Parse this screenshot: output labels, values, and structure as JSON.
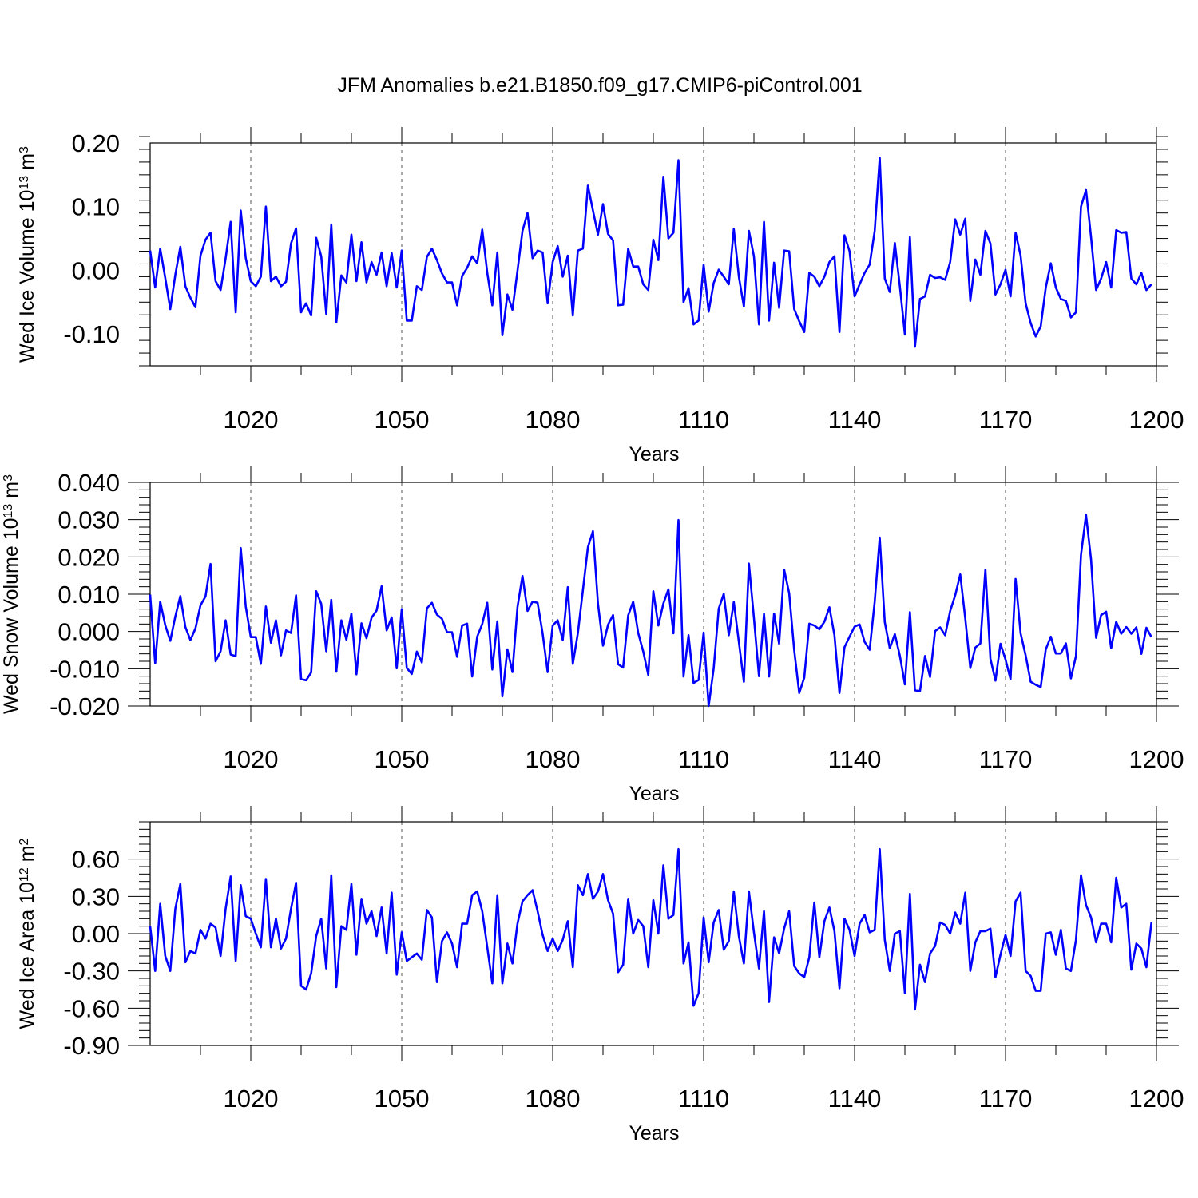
{
  "title": "JFM Anomalies b.e21.B1850.f09_g17.CMIP6-piControl.001",
  "colors": {
    "line": "#0000ff",
    "axis": "#000000",
    "grid": "#555555",
    "background": "#ffffff"
  },
  "chart_data": [
    {
      "type": "line",
      "ylabel": "Wed Ice Volume 10",
      "ylabel_exp": "13",
      "ylabel_unit": "m",
      "ylabel_unit_exp": "3",
      "xlabel": "Years",
      "xlim": [
        1000,
        1200
      ],
      "ylim": [
        -0.15,
        0.2
      ],
      "xticks": [
        1020,
        1050,
        1080,
        1110,
        1140,
        1170,
        1200
      ],
      "xtick_labels": [
        "1020",
        "1050",
        "1080",
        "1110",
        "1140",
        "1170",
        "1200"
      ],
      "yticks": [
        -0.1,
        0.0,
        0.1,
        0.2
      ],
      "ytick_labels": [
        "-0.10",
        "0.00",
        "0.10",
        "0.20"
      ],
      "x_start": 1000,
      "values": [
        0.031,
        -0.027,
        0.034,
        -0.012,
        -0.061,
        -0.007,
        0.037,
        -0.025,
        -0.043,
        -0.058,
        0.023,
        0.048,
        0.059,
        -0.017,
        -0.031,
        0.019,
        0.076,
        -0.066,
        0.094,
        0.019,
        -0.017,
        -0.025,
        -0.01,
        0.1,
        -0.017,
        -0.01,
        -0.025,
        -0.018,
        0.042,
        0.066,
        -0.066,
        -0.052,
        -0.071,
        0.051,
        0.022,
        -0.069,
        0.072,
        -0.082,
        -0.008,
        -0.019,
        0.056,
        -0.017,
        0.044,
        -0.019,
        0.013,
        -0.007,
        0.028,
        -0.025,
        0.027,
        -0.027,
        0.031,
        -0.079,
        -0.079,
        -0.025,
        -0.031,
        0.021,
        0.034,
        0.016,
        -0.005,
        -0.019,
        -0.019,
        -0.055,
        -0.009,
        0.004,
        0.022,
        0.011,
        0.064,
        -0.004,
        -0.055,
        0.028,
        -0.102,
        -0.038,
        -0.062,
        -0.001,
        0.062,
        0.09,
        0.019,
        0.031,
        0.028,
        -0.052,
        0.013,
        0.038,
        -0.01,
        0.023,
        -0.071,
        0.031,
        0.034,
        0.133,
        0.094,
        0.056,
        0.104,
        0.057,
        0.047,
        -0.055,
        -0.054,
        0.034,
        0.006,
        0.006,
        -0.022,
        -0.031,
        0.048,
        0.016,
        0.147,
        0.05,
        0.059,
        0.173,
        -0.05,
        -0.028,
        -0.085,
        -0.079,
        0.009,
        -0.065,
        -0.02,
        0.001,
        -0.01,
        -0.022,
        0.065,
        -0.01,
        -0.057,
        0.062,
        0.022,
        -0.085,
        0.076,
        -0.079,
        0.012,
        -0.059,
        0.031,
        0.03,
        -0.061,
        -0.08,
        -0.097,
        -0.004,
        -0.01,
        -0.025,
        -0.01,
        0.013,
        0.022,
        -0.097,
        0.055,
        0.03,
        -0.041,
        -0.022,
        -0.004,
        0.009,
        0.062,
        0.177,
        -0.013,
        -0.034,
        0.043,
        -0.025,
        -0.101,
        0.052,
        -0.12,
        -0.045,
        -0.041,
        -0.007,
        -0.012,
        -0.011,
        -0.015,
        0.013,
        0.08,
        0.056,
        0.081,
        -0.048,
        0.017,
        -0.007,
        0.062,
        0.042,
        -0.038,
        -0.022,
        0.001,
        -0.041,
        0.059,
        0.023,
        -0.052,
        -0.083,
        -0.104,
        -0.088,
        -0.027,
        0.011,
        -0.027,
        -0.045,
        -0.048,
        -0.074,
        -0.066,
        0.1,
        0.126,
        0.052,
        -0.031,
        -0.013,
        0.013,
        -0.027,
        0.063,
        0.059,
        0.06,
        -0.013,
        -0.022,
        -0.004,
        -0.031,
        -0.022
      ]
    },
    {
      "type": "line",
      "ylabel": "Wed Snow Volume 10",
      "ylabel_exp": "13",
      "ylabel_unit": "m",
      "ylabel_unit_exp": "3",
      "xlabel": "Years",
      "xlim": [
        1000,
        1200
      ],
      "ylim": [
        -0.02,
        0.04
      ],
      "xticks": [
        1020,
        1050,
        1080,
        1110,
        1140,
        1170,
        1200
      ],
      "xtick_labels": [
        "1020",
        "1050",
        "1080",
        "1110",
        "1140",
        "1170",
        "1200"
      ],
      "yticks": [
        -0.02,
        -0.01,
        0.0,
        0.01,
        0.02,
        0.03,
        0.04
      ],
      "ytick_labels": [
        "-0.020",
        "-0.010",
        "0.000",
        "0.010",
        "0.020",
        "0.030",
        "0.040"
      ],
      "x_start": 1000,
      "values": [
        0.0099,
        -0.0086,
        0.008,
        0.0017,
        -0.0025,
        0.004,
        0.0095,
        0.0012,
        -0.0023,
        0.0008,
        0.007,
        0.0094,
        0.0181,
        -0.008,
        -0.0053,
        0.003,
        -0.0062,
        -0.0066,
        0.0224,
        0.0067,
        -0.0015,
        -0.0015,
        -0.0087,
        0.0067,
        -0.003,
        0.003,
        -0.0064,
        0.0003,
        -0.0004,
        0.0097,
        -0.0128,
        -0.0131,
        -0.011,
        0.0108,
        0.0074,
        -0.0053,
        0.0085,
        -0.0108,
        0.003,
        -0.0022,
        0.0048,
        -0.0115,
        0.0022,
        -0.0018,
        0.0037,
        0.0056,
        0.0121,
        0.0003,
        0.0038,
        -0.0099,
        0.006,
        -0.0098,
        -0.0114,
        -0.0054,
        -0.0083,
        0.0062,
        0.0077,
        0.0045,
        0.0034,
        -0.0002,
        -0.0002,
        -0.0068,
        0.0016,
        0.0021,
        -0.0121,
        -0.0014,
        0.002,
        0.0077,
        -0.0102,
        0.0027,
        -0.0174,
        -0.0048,
        -0.0109,
        0.0065,
        0.0149,
        0.0055,
        0.008,
        0.0077,
        -0.0005,
        -0.0109,
        0.0016,
        0.003,
        -0.0023,
        0.0119,
        -0.0087,
        -0.0005,
        0.011,
        0.0226,
        0.0269,
        0.0075,
        -0.0038,
        0.0018,
        0.0044,
        -0.0088,
        -0.0097,
        0.0043,
        0.008,
        -0.0004,
        -0.0054,
        -0.0117,
        0.0108,
        0.0016,
        0.0075,
        0.0113,
        -0.0005,
        0.0299,
        -0.0121,
        -0.001,
        -0.0138,
        -0.013,
        -0.0003,
        -0.02,
        -0.0099,
        0.0061,
        0.0101,
        -0.001,
        0.0079,
        -0.0028,
        -0.0135,
        0.0182,
        0.0036,
        -0.012,
        0.0047,
        -0.0121,
        0.0048,
        -0.0033,
        0.0166,
        0.0103,
        -0.005,
        -0.0165,
        -0.0124,
        0.0021,
        0.0016,
        0.0006,
        0.0026,
        0.0065,
        -0.001,
        -0.0165,
        -0.0042,
        -0.0014,
        0.0013,
        0.0019,
        -0.0028,
        -0.0049,
        0.008,
        0.0252,
        0.0025,
        -0.0045,
        -0.0007,
        -0.0065,
        -0.0142,
        0.0052,
        -0.0158,
        -0.016,
        -0.0066,
        -0.0122,
        0.0001,
        0.0011,
        -0.001,
        0.0055,
        0.0097,
        0.0153,
        0.0035,
        -0.0098,
        -0.0043,
        -0.0032,
        0.0166,
        -0.0073,
        -0.0132,
        -0.0033,
        -0.0075,
        -0.0128,
        0.0141,
        -0.0005,
        -0.0064,
        -0.0135,
        -0.0143,
        -0.0149,
        -0.0048,
        -0.0014,
        -0.0059,
        -0.0059,
        -0.0032,
        -0.0126,
        -0.0066,
        0.0205,
        0.0313,
        0.0193,
        -0.0017,
        0.0044,
        0.0053,
        -0.0045,
        0.0026,
        -0.0006,
        0.0012,
        -0.0006,
        0.0011,
        -0.006,
        0.001,
        -0.0015
      ]
    },
    {
      "type": "line",
      "ylabel": "Wed Ice Area 10",
      "ylabel_exp": "12",
      "ylabel_unit": "m",
      "ylabel_unit_exp": "2",
      "xlabel": "Years",
      "xlim": [
        1000,
        1200
      ],
      "ylim": [
        -0.9,
        0.9
      ],
      "xticks": [
        1020,
        1050,
        1080,
        1110,
        1140,
        1170,
        1200
      ],
      "xtick_labels": [
        "1020",
        "1050",
        "1080",
        "1110",
        "1140",
        "1170",
        "1200"
      ],
      "yticks": [
        -0.9,
        -0.6,
        -0.3,
        0.0,
        0.3,
        0.6
      ],
      "ytick_labels": [
        "-0.90",
        "-0.60",
        "-0.30",
        "0.00",
        "0.30",
        "0.60"
      ],
      "x_start": 1000,
      "values": [
        0.06,
        -0.3,
        0.24,
        -0.18,
        -0.3,
        0.2,
        0.4,
        -0.23,
        -0.14,
        -0.16,
        0.03,
        -0.04,
        0.08,
        0.05,
        -0.18,
        0.2,
        0.46,
        -0.22,
        0.39,
        0.14,
        0.12,
        0.0,
        -0.11,
        0.44,
        -0.11,
        0.12,
        -0.12,
        -0.04,
        0.2,
        0.41,
        -0.42,
        -0.45,
        -0.32,
        -0.02,
        0.12,
        -0.28,
        0.47,
        -0.43,
        0.06,
        0.03,
        0.4,
        -0.17,
        0.28,
        0.08,
        0.18,
        -0.02,
        0.21,
        -0.16,
        0.33,
        -0.33,
        0.01,
        -0.22,
        -0.19,
        -0.16,
        -0.21,
        0.19,
        0.13,
        -0.39,
        -0.06,
        0.01,
        -0.08,
        -0.27,
        0.08,
        0.08,
        0.31,
        0.34,
        0.18,
        -0.11,
        -0.4,
        0.31,
        -0.4,
        -0.08,
        -0.24,
        0.08,
        0.26,
        0.31,
        0.35,
        0.18,
        -0.01,
        -0.14,
        -0.04,
        -0.14,
        -0.05,
        0.1,
        -0.27,
        0.39,
        0.31,
        0.48,
        0.28,
        0.34,
        0.48,
        0.27,
        0.16,
        -0.31,
        -0.25,
        0.28,
        0.0,
        0.11,
        0.06,
        -0.27,
        0.27,
        0.0,
        0.55,
        0.12,
        0.15,
        0.68,
        -0.24,
        -0.07,
        -0.58,
        -0.48,
        0.13,
        -0.23,
        0.09,
        0.19,
        -0.13,
        -0.06,
        0.34,
        -0.02,
        -0.24,
        0.34,
        0.01,
        -0.28,
        0.18,
        -0.55,
        -0.03,
        -0.16,
        0.04,
        0.18,
        -0.26,
        -0.32,
        -0.35,
        -0.19,
        0.25,
        -0.19,
        0.1,
        0.21,
        0.02,
        -0.44,
        0.12,
        0.03,
        -0.18,
        0.08,
        0.15,
        0.01,
        0.03,
        0.68,
        -0.05,
        -0.3,
        0.0,
        0.02,
        -0.48,
        0.32,
        -0.61,
        -0.25,
        -0.39,
        -0.16,
        -0.1,
        0.09,
        0.07,
        0.0,
        0.17,
        0.08,
        0.33,
        -0.3,
        -0.07,
        0.02,
        0.02,
        0.04,
        -0.35,
        -0.17,
        -0.01,
        -0.18,
        0.26,
        0.33,
        -0.3,
        -0.34,
        -0.46,
        -0.46,
        0.0,
        0.01,
        -0.17,
        0.03,
        -0.28,
        -0.3,
        -0.05,
        0.47,
        0.23,
        0.13,
        -0.07,
        0.08,
        0.08,
        -0.07,
        0.45,
        0.21,
        0.24,
        -0.29,
        -0.08,
        -0.12,
        -0.27,
        0.09
      ]
    }
  ]
}
